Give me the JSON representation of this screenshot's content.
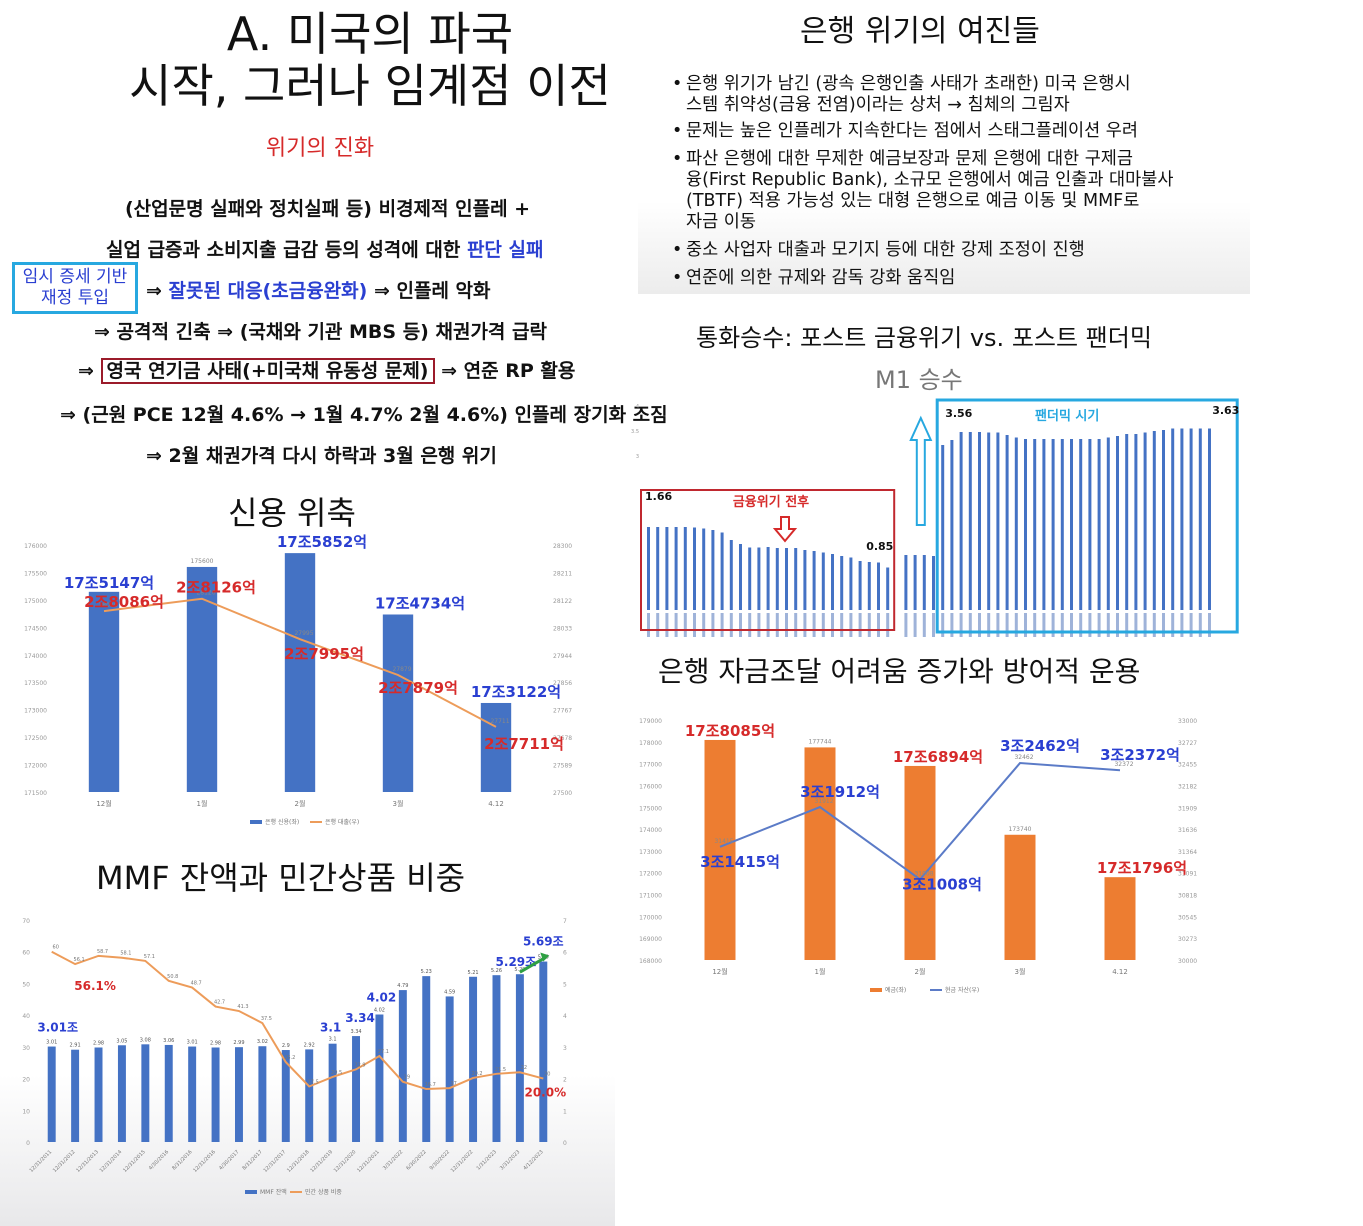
{
  "left": {
    "title_line1": "A. 미국의 파국",
    "title_line2": "시작, 그러나 임계점 이전",
    "subtitle": "위기의 진화",
    "line1": "(산업문명 실패와 정치실패 등) 비경제적 인플레 +",
    "line2_a": "실업 급증과 소비지출 급감 등의 성격에 대한 ",
    "line2_b": "판단 실패",
    "side_box_1": "임시 증세 기반",
    "side_box_2": "재정 투입",
    "line3_a": "⇒ ",
    "line3_b": "잘못된 대응(초금융완화)",
    "line3_c": " ⇒ 인플레 악화",
    "line4": "⇒ 공격적 긴축 ⇒ (국채와 기관 MBS 등) 채권가격 급락",
    "line5_a": "⇒",
    "line5_b": "영국 연기금 사태(+미국채 유동성 문제)",
    "line5_c": "⇒ 연준 RP 활용",
    "line6": "⇒ (근원 PCE 12월 4.6% → 1월 4.7% 2월 4.6%)  인플레 장기화 조짐",
    "line7": "⇒ 2월 채권가격 다시 하락과 3월 은행 위기"
  },
  "right": {
    "title": "은행 위기의 여진들",
    "bullets": [
      [
        "은행 위기가 남긴 (광속 은행인출 사태가 초래한) 미국 은행시",
        "스템 취약성(금융 전염)이라는 상처 → 침체의 그림자"
      ],
      [
        "문제는 높은 인플레가 지속한다는 점에서 스태그플레이션 우려"
      ],
      [
        "파산 은행에 대한 무제한 예금보장과 문제 은행에 대한 구제금",
        "융(First Republic Bank), 소규모 은행에서 예금 인출과 대마불사",
        "(TBTF) 적용 가능성 있는 대형 은행으로 예금 이동 및 MMF로",
        "자금 이동"
      ],
      [
        "중소 사업자 대출과 모기지 등에 대한 강제 조정이 진행"
      ],
      [
        "연준에 의한 규제와 감독 강화 움직임"
      ]
    ],
    "bullet_dot": "•"
  },
  "chart_data": [
    {
      "id": "credit",
      "type": "bar",
      "title": "신용 위축",
      "categories": [
        "12월",
        "1월",
        "2월",
        "3월",
        "4.12"
      ],
      "series": [
        {
          "name": "은행 신용(좌)",
          "type": "bar",
          "values": [
            175147,
            175600,
            175852,
            174734,
            173122
          ],
          "color": "#4472c4"
        },
        {
          "name": "은행 대출(우)",
          "type": "line",
          "values": [
            28086,
            28126,
            27995,
            27879,
            27711
          ],
          "color": "#ed9c5a"
        }
      ],
      "bar_labels": [
        "17조5147억",
        "",
        "17조5852억",
        "17조4734억",
        "17조3122억"
      ],
      "line_labels": [
        "2조8086억",
        "2조8126억",
        "2조7995억",
        "2조7879억",
        "2조7711억"
      ],
      "ylim_left": [
        171500,
        176000
      ],
      "ylim_right": [
        27500,
        28300
      ],
      "legend": "bottom"
    },
    {
      "id": "mmf",
      "type": "bar",
      "title": "MMF 잔액과 민간상품 비중",
      "categories": [
        "12/31/2011",
        "12/31/2012",
        "12/31/2013",
        "12/31/2014",
        "12/31/2015",
        "4/30/2016",
        "8/31/2016",
        "12/31/2016",
        "4/30/2017",
        "8/31/2017",
        "12/31/2017",
        "12/31/2018",
        "12/31/2019",
        "12/31/2020",
        "12/31/2021",
        "3/31/2022",
        "6/30/2022",
        "9/30/2022",
        "12/31/2022",
        "1/31/2023",
        "3/31/2023",
        "4/12/2023"
      ],
      "series": [
        {
          "name": "MMF 잔액",
          "type": "bar",
          "values": [
            3.01,
            2.91,
            2.98,
            3.05,
            3.08,
            3.06,
            3.01,
            2.98,
            2.99,
            3.02,
            2.9,
            2.92,
            3.1,
            3.34,
            4.02,
            4.79,
            5.23,
            4.59,
            5.21,
            5.26,
            5.29,
            5.69
          ],
          "color": "#4472c4"
        },
        {
          "name": "민간 상품 비중",
          "type": "line",
          "values": [
            60,
            56.1,
            58.7,
            58.1,
            57.1,
            50.8,
            48.7,
            42.7,
            41.3,
            37.5,
            25.2,
            17.5,
            20.5,
            22.9,
            27.1,
            19,
            16.7,
            17,
            20.2,
            21.5,
            22,
            20
          ],
          "color": "#ed9c5a"
        }
      ],
      "callouts": [
        {
          "text": "56.1%",
          "index": 1,
          "series": "민간 상품 비중"
        },
        {
          "text": "3.01조",
          "index": 0,
          "series": "MMF 잔액"
        },
        {
          "text": "3.1",
          "index": 12,
          "series": "MMF 잔액"
        },
        {
          "text": "3.34",
          "index": 13,
          "series": "MMF 잔액"
        },
        {
          "text": "4.02",
          "index": 14,
          "series": "MMF 잔액"
        },
        {
          "text": "5.29조",
          "index": 20,
          "series": "MMF 잔액"
        },
        {
          "text": "5.69조",
          "index": 21,
          "series": "MMF 잔액"
        },
        {
          "text": "20.0%",
          "index": 21,
          "series": "민간 상품 비중"
        }
      ],
      "ylim_left": [
        0,
        70
      ],
      "ylim_right": [
        0,
        7
      ],
      "legend": "bottom"
    },
    {
      "id": "m1",
      "type": "bar",
      "title": "통화승수: 포스트 금융위기 vs. 포스트 팬더믹",
      "subtitle": "M1 승수",
      "series": [
        {
          "name": "M1 승수",
          "values": [
            1.66,
            1.66,
            1.66,
            1.66,
            1.66,
            1.65,
            1.63,
            1.6,
            1.55,
            1.4,
            1.32,
            1.25,
            1.25,
            1.26,
            1.24,
            1.24,
            1.24,
            1.2,
            1.18,
            1.15,
            1.12,
            1.08,
            1.05,
            0.98,
            0.96,
            0.95,
            0.85,
            1.1,
            1.1,
            1.1,
            1.08,
            3.3,
            3.4,
            3.56,
            3.56,
            3.56,
            3.55,
            3.55,
            3.5,
            3.45,
            3.42,
            3.42,
            3.42,
            3.42,
            3.42,
            3.42,
            3.42,
            3.42,
            3.42,
            3.45,
            3.48,
            3.52,
            3.52,
            3.55,
            3.58,
            3.6,
            3.63,
            3.63,
            3.63,
            3.63,
            3.63
          ],
          "color": "#4472c4"
        }
      ],
      "gap_after_index": 26,
      "ylim": [
        0,
        4
      ],
      "yticks": [
        "4",
        "3.5",
        "3"
      ],
      "box_labels": {
        "crisis": "금융위기 전후",
        "pandemic": "팬더믹 시기"
      },
      "value_labels": {
        "crisis_start": "1.66",
        "crisis_end": "0.85",
        "pandemic_start": "3.56",
        "pandemic_end": "3.63"
      }
    },
    {
      "id": "funding",
      "type": "bar",
      "title": "은행 자금조달 어려움 증가와 방어적 운용",
      "categories": [
        "12월",
        "1월",
        "2월",
        "3월",
        "4.12"
      ],
      "series": [
        {
          "name": "예금(좌)",
          "type": "bar",
          "values": [
            178085,
            177744,
            176894,
            173740,
            171796
          ],
          "color": "#ed7d31"
        },
        {
          "name": "현금 자산(우)",
          "type": "line",
          "values": [
            31415,
            31912,
            31008,
            32462,
            32372
          ],
          "color": "#5b7bc7"
        }
      ],
      "bar_labels": [
        "17조8085억",
        "",
        "17조6894억",
        "",
        "17조1796억"
      ],
      "line_labels": [
        "3조1415억",
        "3조1912억",
        "3조1008억",
        "3조2462억",
        "3조2372억"
      ],
      "ylim_left": [
        168000,
        179000
      ],
      "ylim_right": [
        30000,
        33000
      ],
      "legend": "bottom"
    }
  ]
}
